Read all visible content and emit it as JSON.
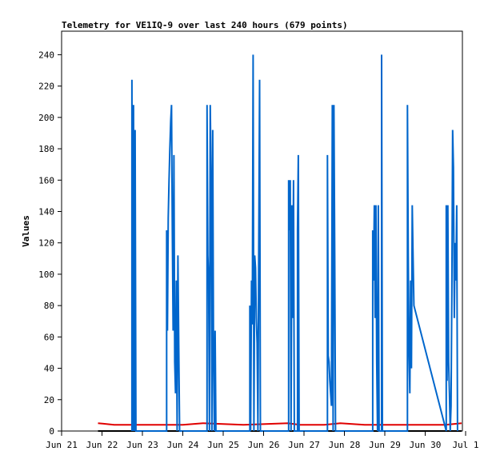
{
  "chart_data": {
    "type": "line",
    "title": "Telemetry for VE1IQ-9 over last 240 hours (679 points)",
    "ylabel": "Values",
    "xlabel": "",
    "ylim": [
      0,
      255
    ],
    "yticks": [
      0,
      20,
      40,
      60,
      80,
      100,
      120,
      140,
      160,
      180,
      200,
      220,
      240
    ],
    "x_unit": "days since Jun 21 00:00",
    "xlim": [
      0,
      10
    ],
    "xticks": [
      {
        "x": 0,
        "label": "Jun 21"
      },
      {
        "x": 1,
        "label": "Jun 22"
      },
      {
        "x": 2,
        "label": "Jun 23"
      },
      {
        "x": 3,
        "label": "Jun 24"
      },
      {
        "x": 4,
        "label": "Jun 25"
      },
      {
        "x": 5,
        "label": "Jun 26"
      },
      {
        "x": 6,
        "label": "Jun 27"
      },
      {
        "x": 7,
        "label": "Jun 28"
      },
      {
        "x": 8,
        "label": "Jun 29"
      },
      {
        "x": 9,
        "label": "Jun 30"
      },
      {
        "x": 10,
        "label": "Jul 1"
      }
    ],
    "grid": false,
    "legend": "none",
    "series": [
      {
        "color": "#e00000",
        "points": [
          [
            0.9,
            5
          ],
          [
            1.3,
            4
          ],
          [
            2.5,
            4
          ],
          [
            3.0,
            4
          ],
          [
            3.5,
            5
          ],
          [
            4.5,
            4
          ],
          [
            5.6,
            5
          ],
          [
            5.9,
            4
          ],
          [
            6.5,
            4
          ],
          [
            6.9,
            5
          ],
          [
            7.5,
            4
          ],
          [
            8.5,
            4
          ],
          [
            9.5,
            4
          ],
          [
            9.9,
            5
          ]
        ]
      },
      {
        "color": "#000000",
        "points": [
          [
            0.9,
            0
          ],
          [
            9.9,
            0
          ]
        ]
      },
      {
        "color": "#0066cc",
        "points": [
          [
            1.74,
            0
          ],
          [
            1.74,
            224
          ],
          [
            1.76,
            0
          ],
          [
            1.78,
            208
          ],
          [
            1.8,
            0
          ],
          [
            1.82,
            192
          ],
          [
            1.84,
            0
          ],
          [
            2.6,
            0
          ],
          [
            2.6,
            128
          ],
          [
            2.62,
            64
          ],
          [
            2.64,
            136
          ],
          [
            2.66,
            160
          ],
          [
            2.68,
            180
          ],
          [
            2.7,
            198
          ],
          [
            2.72,
            208
          ],
          [
            2.74,
            128
          ],
          [
            2.76,
            64
          ],
          [
            2.78,
            176
          ],
          [
            2.8,
            44
          ],
          [
            2.82,
            24
          ],
          [
            2.84,
            96
          ],
          [
            2.86,
            0
          ],
          [
            2.88,
            112
          ],
          [
            2.9,
            56
          ],
          [
            2.92,
            0
          ],
          [
            3.6,
            0
          ],
          [
            3.6,
            208
          ],
          [
            3.62,
            112
          ],
          [
            3.64,
            96
          ],
          [
            3.66,
            0
          ],
          [
            3.68,
            208
          ],
          [
            3.7,
            160
          ],
          [
            3.72,
            0
          ],
          [
            3.74,
            192
          ],
          [
            3.76,
            48
          ],
          [
            3.78,
            0
          ],
          [
            3.8,
            64
          ],
          [
            3.82,
            0
          ],
          [
            4.66,
            0
          ],
          [
            4.66,
            80
          ],
          [
            4.68,
            0
          ],
          [
            4.7,
            96
          ],
          [
            4.72,
            68
          ],
          [
            4.74,
            240
          ],
          [
            4.76,
            0
          ],
          [
            4.78,
            112
          ],
          [
            4.8,
            104
          ],
          [
            4.82,
            72
          ],
          [
            4.84,
            56
          ],
          [
            4.86,
            0
          ],
          [
            4.88,
            112
          ],
          [
            4.9,
            224
          ],
          [
            4.92,
            0
          ],
          [
            5.62,
            0
          ],
          [
            5.62,
            160
          ],
          [
            5.64,
            128
          ],
          [
            5.66,
            160
          ],
          [
            5.68,
            0
          ],
          [
            5.7,
            144
          ],
          [
            5.72,
            72
          ],
          [
            5.74,
            160
          ],
          [
            5.76,
            0
          ],
          [
            5.84,
            0
          ],
          [
            5.84,
            128
          ],
          [
            5.86,
            176
          ],
          [
            5.88,
            0
          ],
          [
            6.58,
            0
          ],
          [
            6.58,
            176
          ],
          [
            6.6,
            48
          ],
          [
            6.62,
            44
          ],
          [
            6.64,
            32
          ],
          [
            6.66,
            24
          ],
          [
            6.68,
            16
          ],
          [
            6.7,
            208
          ],
          [
            6.72,
            0
          ],
          [
            6.74,
            208
          ],
          [
            6.76,
            112
          ],
          [
            6.78,
            0
          ],
          [
            7.7,
            0
          ],
          [
            7.7,
            128
          ],
          [
            7.72,
            96
          ],
          [
            7.74,
            144
          ],
          [
            7.76,
            72
          ],
          [
            7.78,
            144
          ],
          [
            7.8,
            44
          ],
          [
            7.82,
            0
          ],
          [
            7.84,
            144
          ],
          [
            7.86,
            0
          ],
          [
            7.92,
            0
          ],
          [
            7.92,
            240
          ],
          [
            7.94,
            0
          ],
          [
            8.56,
            0
          ],
          [
            8.56,
            208
          ],
          [
            8.58,
            112
          ],
          [
            8.6,
            48
          ],
          [
            8.62,
            24
          ],
          [
            8.64,
            96
          ],
          [
            8.66,
            40
          ],
          [
            8.68,
            144
          ],
          [
            8.7,
            112
          ],
          [
            8.72,
            80
          ],
          [
            9.52,
            0
          ],
          [
            9.52,
            144
          ],
          [
            9.54,
            32
          ],
          [
            9.56,
            144
          ],
          [
            9.58,
            44
          ],
          [
            9.6,
            24
          ],
          [
            9.62,
            0
          ],
          [
            9.64,
            16
          ],
          [
            9.66,
            88
          ],
          [
            9.68,
            192
          ],
          [
            9.7,
            168
          ],
          [
            9.72,
            72
          ],
          [
            9.74,
            120
          ],
          [
            9.76,
            96
          ],
          [
            9.78,
            144
          ],
          [
            9.8,
            0
          ]
        ]
      }
    ]
  }
}
